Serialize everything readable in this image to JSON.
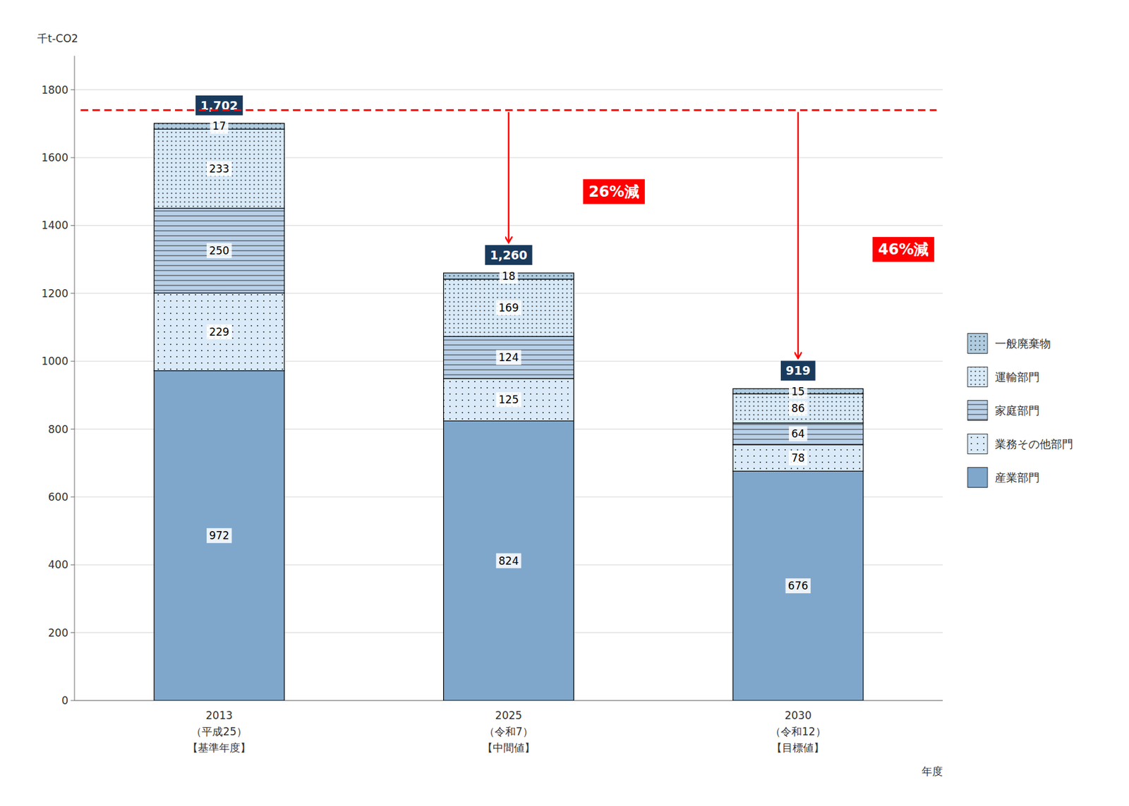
{
  "chart_data": {
    "type": "bar",
    "stacked": true,
    "categories": [
      "2013\n（平成25）\n【基準年度】",
      "2025\n（令和7）\n【中間値】",
      "2030\n（令和12）\n【目標値】"
    ],
    "series": [
      {
        "name": "産業部門",
        "color": "#7fa7cc",
        "values": [
          972,
          824,
          676
        ]
      },
      {
        "name": "業務その他部門",
        "color": "#daeaf8",
        "values": [
          229,
          125,
          78
        ]
      },
      {
        "name": "家庭部門",
        "color": "#b8d0e8",
        "values": [
          250,
          124,
          64
        ]
      },
      {
        "name": "運輸部門",
        "color": "#d8eaf8",
        "values": [
          233,
          169,
          86
        ]
      },
      {
        "name": "一般廃棄物",
        "color": "#b0cce0",
        "values": [
          17,
          18,
          15
        ]
      }
    ],
    "totals": {
      "values": [
        1702,
        1260,
        919
      ],
      "value_labels": [
        "1,702",
        "1,260",
        "919"
      ]
    },
    "baseline": 1740,
    "annotations": [
      {
        "text": "26%減",
        "category": "2025\n（令和7）\n【中間値】"
      },
      {
        "text": "46%減",
        "category": "2030\n（令和12）\n【目標値】"
      }
    ],
    "ylim": [
      0,
      1900
    ],
    "yticks": [
      0,
      200,
      400,
      600,
      800,
      1000,
      1200,
      1400,
      1600,
      1800
    ],
    "ylabel": "千t-CO2",
    "xlabel": "年度",
    "grid": true,
    "legend": "right",
    "data_labels": true
  }
}
